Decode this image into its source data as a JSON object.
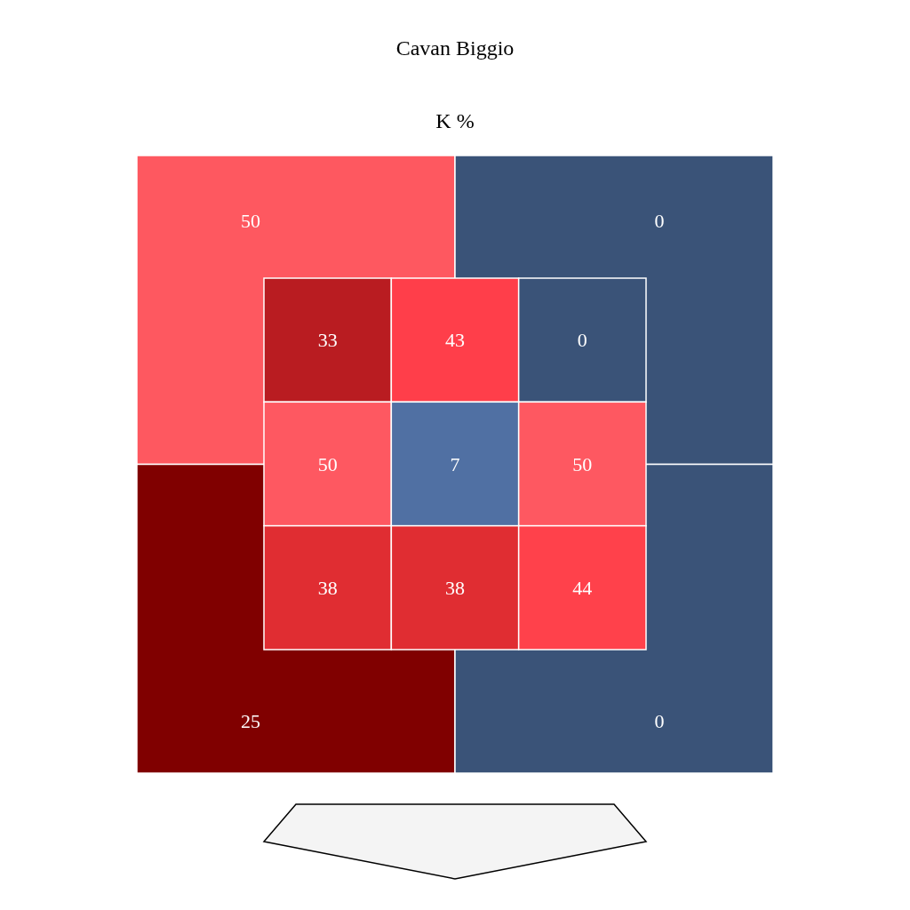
{
  "chart_data": [
    {
      "type": "heatmap",
      "title": "Cavan Biggio",
      "subtitle": "K %",
      "categories": [
        null,
        null
      ],
      "y_categories": [
        null,
        null
      ],
      "cells": [
        [
          50,
          0
        ],
        [
          25,
          0
        ]
      ],
      "colors": [
        [
          "#fe5860",
          "#3a5378"
        ],
        [
          "#800000",
          "#3a5378"
        ]
      ],
      "data_labels": true
    },
    {
      "type": "heatmap",
      "categories": [
        null,
        null,
        null
      ],
      "y_categories": [
        null,
        null,
        null
      ],
      "cells": [
        [
          33,
          43,
          0
        ],
        [
          50,
          7,
          50
        ],
        [
          38,
          38,
          44
        ]
      ],
      "colors": [
        [
          "#b91c21",
          "#ff3e4a",
          "#3a5378"
        ],
        [
          "#fe5861",
          "#5070a3",
          "#fe5861"
        ],
        [
          "#e02d32",
          "#e02d32",
          "#ff414b"
        ]
      ],
      "data_labels": true
    }
  ]
}
